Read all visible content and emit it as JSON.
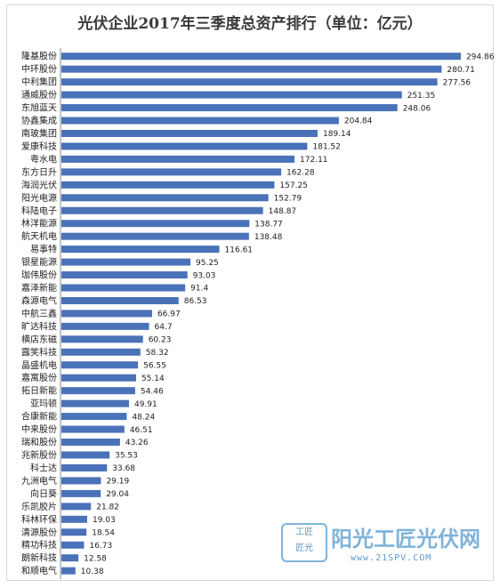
{
  "chart_data": {
    "type": "bar",
    "orientation": "horizontal",
    "title": "光伏企业2017年三季度总资产排行（单位：亿元）",
    "color": "#4a72b8",
    "xlim": [
      0,
      310
    ],
    "categories": [
      "隆基股份",
      "中环股份",
      "中利集团",
      "通威股份",
      "东旭蓝天",
      "协鑫集成",
      "南玻集团",
      "爱康科技",
      "粤水电",
      "东方日升",
      "海润光伏",
      "阳光电源",
      "科陆电子",
      "林洋能源",
      "航天机电",
      "易事特",
      "银星能源",
      "珈伟股份",
      "嘉泽新能",
      "森源电气",
      "中航三鑫",
      "旷达科技",
      "横店东磁",
      "露笑科技",
      "晶盛机电",
      "嘉寓股份",
      "拓日新能",
      "亚玛顿",
      "合康新能",
      "中来股份",
      "瑞和股份",
      "兆新股份",
      "科士达",
      "九洲电气",
      "向日葵",
      "乐凯胶片",
      "科林环保",
      "清源股份",
      "精功科技",
      "朗新科技",
      "和顺电气"
    ],
    "values": [
      294.86,
      280.71,
      277.56,
      251.35,
      248.06,
      204.84,
      189.14,
      181.52,
      172.11,
      162.28,
      157.25,
      152.79,
      148.87,
      138.77,
      138.48,
      116.61,
      95.25,
      93.03,
      91.4,
      86.53,
      66.97,
      64.7,
      60.23,
      58.32,
      56.55,
      55.14,
      54.46,
      49.91,
      48.24,
      46.51,
      43.26,
      35.53,
      33.68,
      29.19,
      29.04,
      21.82,
      19.03,
      18.54,
      16.73,
      12.58,
      10.38
    ],
    "value_labels": [
      "294.86",
      "280.71",
      "277.56",
      "251.35",
      "248.06",
      "204.84",
      "189.14",
      "181.52",
      "172.11",
      "162.28",
      "157.25",
      "152.79",
      "148.87",
      "138.77",
      "138.48",
      "116.61",
      "95.25",
      "93.03",
      "91.4",
      "86.53",
      "66.97",
      "64.7",
      "60.23",
      "58.32",
      "56.55",
      "55.14",
      "54.46",
      "49.91",
      "48.24",
      "46.51",
      "43.26",
      "35.53",
      "33.68",
      "29.19",
      "29.04",
      "21.82",
      "19.03",
      "18.54",
      "16.73",
      "12.58",
      "10.38"
    ]
  },
  "watermark": {
    "seal_line1": "工匠",
    "seal_line2": "匠光",
    "name": "阳光工匠光伏网",
    "url": "www.21SPV.COM"
  }
}
